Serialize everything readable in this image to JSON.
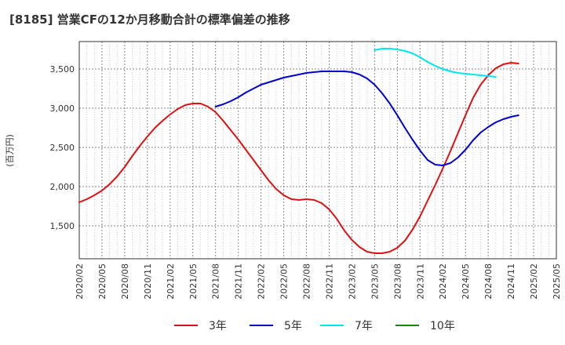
{
  "chart_data": {
    "type": "line",
    "title": "[8185]  営業CFの12か月移動合計の標準偏差の推移",
    "ylabel": "(百万円)",
    "xlabel": "",
    "ylim": [
      1080,
      3850
    ],
    "y_ticks": [
      1500,
      2000,
      2500,
      3000,
      3500
    ],
    "y_tick_labels": [
      "1,500",
      "2,000",
      "2,500",
      "3,000",
      "3,500"
    ],
    "x_ticks": [
      "2020/02",
      "2020/05",
      "2020/08",
      "2020/11",
      "2021/02",
      "2021/05",
      "2021/08",
      "2021/11",
      "2022/02",
      "2022/05",
      "2022/08",
      "2022/11",
      "2023/02",
      "2023/05",
      "2023/08",
      "2023/11",
      "2024/02",
      "2024/05",
      "2024/08",
      "2024/11",
      "2025/02",
      "2025/05"
    ],
    "grid": true,
    "legend_position": "bottom",
    "series": [
      {
        "name": "3年",
        "color": "#dd1111",
        "points": [
          [
            "2020/02",
            1800
          ],
          [
            "2020/03",
            1840
          ],
          [
            "2020/04",
            1890
          ],
          [
            "2020/05",
            1950
          ],
          [
            "2020/06",
            2030
          ],
          [
            "2020/07",
            2130
          ],
          [
            "2020/08",
            2250
          ],
          [
            "2020/09",
            2390
          ],
          [
            "2020/10",
            2520
          ],
          [
            "2020/11",
            2640
          ],
          [
            "2020/12",
            2750
          ],
          [
            "2021/01",
            2840
          ],
          [
            "2021/02",
            2920
          ],
          [
            "2021/03",
            2990
          ],
          [
            "2021/04",
            3040
          ],
          [
            "2021/05",
            3060
          ],
          [
            "2021/06",
            3060
          ],
          [
            "2021/07",
            3020
          ],
          [
            "2021/08",
            2950
          ],
          [
            "2021/09",
            2840
          ],
          [
            "2021/10",
            2720
          ],
          [
            "2021/11",
            2600
          ],
          [
            "2021/12",
            2470
          ],
          [
            "2022/01",
            2340
          ],
          [
            "2022/02",
            2210
          ],
          [
            "2022/03",
            2080
          ],
          [
            "2022/04",
            1970
          ],
          [
            "2022/05",
            1890
          ],
          [
            "2022/06",
            1840
          ],
          [
            "2022/07",
            1830
          ],
          [
            "2022/08",
            1840
          ],
          [
            "2022/09",
            1830
          ],
          [
            "2022/10",
            1790
          ],
          [
            "2022/11",
            1710
          ],
          [
            "2022/12",
            1590
          ],
          [
            "2023/01",
            1440
          ],
          [
            "2023/02",
            1320
          ],
          [
            "2023/03",
            1230
          ],
          [
            "2023/04",
            1170
          ],
          [
            "2023/05",
            1150
          ],
          [
            "2023/06",
            1150
          ],
          [
            "2023/07",
            1170
          ],
          [
            "2023/08",
            1220
          ],
          [
            "2023/09",
            1310
          ],
          [
            "2023/10",
            1450
          ],
          [
            "2023/11",
            1620
          ],
          [
            "2023/12",
            1820
          ],
          [
            "2024/01",
            2020
          ],
          [
            "2024/02",
            2230
          ],
          [
            "2024/03",
            2450
          ],
          [
            "2024/04",
            2680
          ],
          [
            "2024/05",
            2910
          ],
          [
            "2024/06",
            3130
          ],
          [
            "2024/07",
            3300
          ],
          [
            "2024/08",
            3420
          ],
          [
            "2024/09",
            3510
          ],
          [
            "2024/10",
            3560
          ],
          [
            "2024/11",
            3580
          ],
          [
            "2024/12",
            3570
          ]
        ]
      },
      {
        "name": "5年",
        "color": "#0000cc",
        "points": [
          [
            "2021/08",
            3020
          ],
          [
            "2021/09",
            3050
          ],
          [
            "2021/10",
            3090
          ],
          [
            "2021/11",
            3140
          ],
          [
            "2021/12",
            3200
          ],
          [
            "2022/01",
            3250
          ],
          [
            "2022/02",
            3300
          ],
          [
            "2022/03",
            3330
          ],
          [
            "2022/04",
            3360
          ],
          [
            "2022/05",
            3390
          ],
          [
            "2022/06",
            3410
          ],
          [
            "2022/07",
            3430
          ],
          [
            "2022/08",
            3450
          ],
          [
            "2022/09",
            3460
          ],
          [
            "2022/10",
            3470
          ],
          [
            "2022/11",
            3470
          ],
          [
            "2022/12",
            3470
          ],
          [
            "2023/01",
            3470
          ],
          [
            "2023/02",
            3460
          ],
          [
            "2023/03",
            3430
          ],
          [
            "2023/04",
            3380
          ],
          [
            "2023/05",
            3300
          ],
          [
            "2023/06",
            3190
          ],
          [
            "2023/07",
            3060
          ],
          [
            "2023/08",
            2910
          ],
          [
            "2023/09",
            2750
          ],
          [
            "2023/10",
            2600
          ],
          [
            "2023/11",
            2460
          ],
          [
            "2023/12",
            2340
          ],
          [
            "2024/01",
            2280
          ],
          [
            "2024/02",
            2270
          ],
          [
            "2024/03",
            2300
          ],
          [
            "2024/04",
            2370
          ],
          [
            "2024/05",
            2470
          ],
          [
            "2024/06",
            2590
          ],
          [
            "2024/07",
            2690
          ],
          [
            "2024/08",
            2760
          ],
          [
            "2024/09",
            2820
          ],
          [
            "2024/10",
            2860
          ],
          [
            "2024/11",
            2890
          ],
          [
            "2024/12",
            2910
          ]
        ]
      },
      {
        "name": "7年",
        "color": "#00e5ee",
        "points": [
          [
            "2023/05",
            3740
          ],
          [
            "2023/06",
            3760
          ],
          [
            "2023/07",
            3760
          ],
          [
            "2023/08",
            3750
          ],
          [
            "2023/09",
            3730
          ],
          [
            "2023/10",
            3700
          ],
          [
            "2023/11",
            3650
          ],
          [
            "2023/12",
            3590
          ],
          [
            "2024/01",
            3540
          ],
          [
            "2024/02",
            3500
          ],
          [
            "2024/03",
            3470
          ],
          [
            "2024/04",
            3450
          ],
          [
            "2024/05",
            3440
          ],
          [
            "2024/06",
            3430
          ],
          [
            "2024/07",
            3420
          ],
          [
            "2024/08",
            3410
          ],
          [
            "2024/09",
            3400
          ]
        ]
      },
      {
        "name": "10年",
        "color": "#118811",
        "points": []
      }
    ]
  }
}
